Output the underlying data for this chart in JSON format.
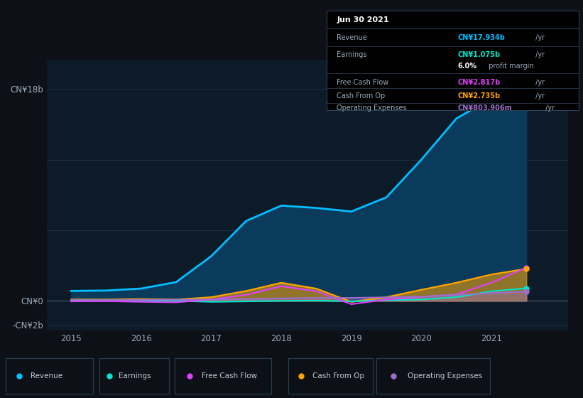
{
  "bg_color": "#0d1117",
  "plot_bg_color": "#0d1a28",
  "grid_color": "#1e2d3d",
  "x_years": [
    2015.0,
    2015.5,
    2016.0,
    2016.5,
    2017.0,
    2017.5,
    2018.0,
    2018.5,
    2019.0,
    2019.5,
    2020.0,
    2020.5,
    2021.0,
    2021.5
  ],
  "revenue": [
    0.85,
    0.88,
    1.05,
    1.6,
    3.8,
    6.8,
    8.1,
    7.9,
    7.6,
    8.8,
    12.0,
    15.5,
    17.2,
    17.934
  ],
  "earnings": [
    0.06,
    0.05,
    0.03,
    0.01,
    -0.08,
    -0.04,
    0.01,
    0.03,
    -0.04,
    0.06,
    0.12,
    0.32,
    0.82,
    1.075
  ],
  "free_cash": [
    -0.04,
    -0.02,
    -0.08,
    -0.12,
    0.12,
    0.52,
    1.25,
    0.82,
    -0.28,
    0.12,
    0.35,
    0.55,
    1.55,
    2.817
  ],
  "cash_from_op": [
    0.12,
    0.12,
    0.16,
    0.12,
    0.32,
    0.85,
    1.55,
    1.05,
    -0.08,
    0.32,
    0.95,
    1.55,
    2.25,
    2.735
  ],
  "op_expenses": [
    0.06,
    0.07,
    0.09,
    0.11,
    0.12,
    0.16,
    0.22,
    0.26,
    0.26,
    0.31,
    0.36,
    0.52,
    0.67,
    0.8039
  ],
  "revenue_color": "#00bfff",
  "revenue_fill_color": "#0a3a5c",
  "earnings_color": "#00e5cc",
  "free_cash_color": "#e040fb",
  "cash_from_op_color": "#ffa500",
  "op_expenses_color": "#9c6fcc",
  "ylim_min": -2.5,
  "ylim_max": 20.5,
  "ytick_positions": [
    -2,
    0,
    6,
    12,
    18
  ],
  "ytick_labels": [
    "-CN¥2b",
    "CN¥0",
    "",
    "",
    "CN¥18b"
  ],
  "xlim_min": 2014.65,
  "xlim_max": 2022.1,
  "xlabel_years": [
    2015,
    2016,
    2017,
    2018,
    2019,
    2020,
    2021
  ],
  "info_title": "Jun 30 2021",
  "info_rows": [
    {
      "label": "Revenue",
      "value": "CN¥17.934b",
      "color": "#00bfff",
      "suffix": " /yr",
      "extra": null
    },
    {
      "label": "Earnings",
      "value": "CN¥1.075b",
      "color": "#00e5cc",
      "suffix": " /yr",
      "extra": "6.0% profit margin"
    },
    {
      "label": "Free Cash Flow",
      "value": "CN¥2.817b",
      "color": "#e040fb",
      "suffix": " /yr",
      "extra": null
    },
    {
      "label": "Cash From Op",
      "value": "CN¥2.735b",
      "color": "#ffa500",
      "suffix": " /yr",
      "extra": null
    },
    {
      "label": "Operating Expenses",
      "value": "CN¥803.906m",
      "color": "#9c6fcc",
      "suffix": " /yr",
      "extra": null
    }
  ],
  "legend_items": [
    {
      "label": "Revenue",
      "color": "#00bfff"
    },
    {
      "label": "Earnings",
      "color": "#00e5cc"
    },
    {
      "label": "Free Cash Flow",
      "color": "#e040fb"
    },
    {
      "label": "Cash From Op",
      "color": "#ffa500"
    },
    {
      "label": "Operating Expenses",
      "color": "#9c6fcc"
    }
  ]
}
